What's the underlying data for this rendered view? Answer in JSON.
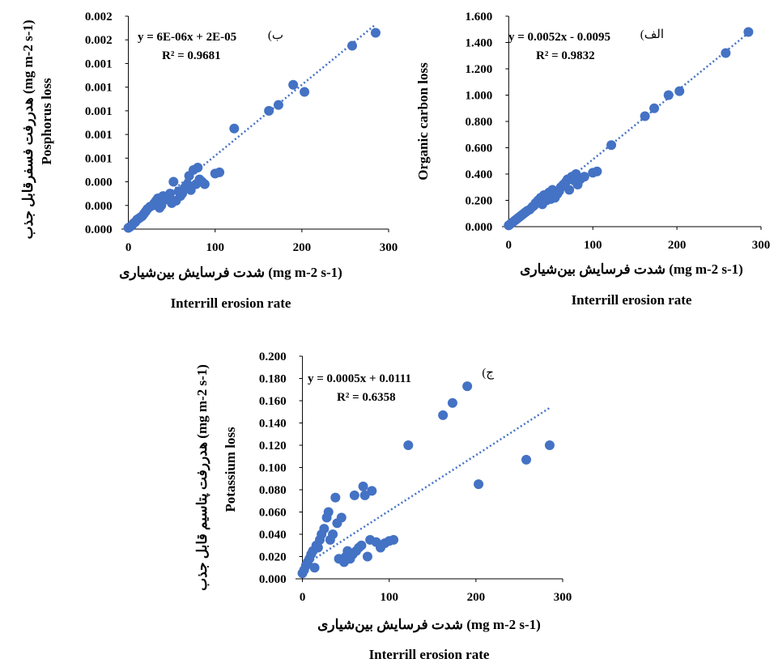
{
  "chart_data": [
    {
      "type": "scatter",
      "panel_label": "ب)",
      "title": "",
      "equation": "y = 6E-06x + 2E-05",
      "r2": "R² = 0.9681",
      "ylabel": "Posphorus loss",
      "ylabel_fa": "هدررفت فسفرقابل جذب",
      "ylabel_unit": "(mg m-2 s-1)",
      "xlabel_fa": "شدت فرسایش بین‌شیاری",
      "xlabel_unit": "(mg m-2 s-1)",
      "xlabel": "Interrill erosion rate",
      "xlim": [
        -8,
        300
      ],
      "ylim": [
        0,
        0.0018
      ],
      "xticks": [
        0,
        100,
        200,
        300
      ],
      "xtick_labels": [
        "0",
        "100",
        "200",
        "300"
      ],
      "yticks": [
        0,
        0.0002,
        0.0004,
        0.0006,
        0.0008,
        0.001,
        0.0012,
        0.0014,
        0.0016,
        0.0018
      ],
      "ytick_labels": [
        "0.000",
        "0.000",
        "0.000",
        "0.001",
        "0.001",
        "0.001",
        "0.001",
        "0.001",
        "0.002",
        "0.002"
      ],
      "trendline": {
        "slope": 6e-06,
        "intercept": 2e-05,
        "x_range": [
          0,
          285
        ]
      },
      "points": [
        [
          0,
          1e-05
        ],
        [
          2,
          2e-05
        ],
        [
          4,
          3e-05
        ],
        [
          6,
          5e-05
        ],
        [
          8,
          6e-05
        ],
        [
          10,
          8e-05
        ],
        [
          12,
          9e-05
        ],
        [
          14,
          0.0001
        ],
        [
          16,
          0.00011
        ],
        [
          18,
          0.00013
        ],
        [
          20,
          0.00015
        ],
        [
          22,
          0.00017
        ],
        [
          25,
          0.00019
        ],
        [
          28,
          0.0002
        ],
        [
          30,
          0.00022
        ],
        [
          32,
          0.00024
        ],
        [
          34,
          0.00026
        ],
        [
          36,
          0.00018
        ],
        [
          38,
          0.0002
        ],
        [
          40,
          0.00028
        ],
        [
          45,
          0.00025
        ],
        [
          48,
          0.0003
        ],
        [
          50,
          0.00022
        ],
        [
          52,
          0.0004
        ],
        [
          55,
          0.00024
        ],
        [
          58,
          0.00032
        ],
        [
          60,
          0.00028
        ],
        [
          62,
          0.0003
        ],
        [
          65,
          0.00035
        ],
        [
          68,
          0.00038
        ],
        [
          70,
          0.00045
        ],
        [
          72,
          0.00033
        ],
        [
          75,
          0.0005
        ],
        [
          78,
          0.00038
        ],
        [
          80,
          0.00052
        ],
        [
          82,
          0.00042
        ],
        [
          85,
          0.0004
        ],
        [
          88,
          0.00038
        ],
        [
          100,
          0.00047
        ],
        [
          105,
          0.00048
        ],
        [
          122,
          0.00085
        ],
        [
          162,
          0.001
        ],
        [
          173,
          0.00105
        ],
        [
          190,
          0.00122
        ],
        [
          203,
          0.00116
        ],
        [
          258,
          0.00155
        ],
        [
          285,
          0.00166
        ]
      ]
    },
    {
      "type": "scatter",
      "panel_label": "الف)",
      "title": "",
      "equation": "y = 0.0052x - 0.0095",
      "r2": "R² = 0.9832",
      "ylabel": "Organic carbon loss",
      "xlabel_fa": "شدت فرسایش بین‌شیاری",
      "xlabel_unit": "(mg m-2 s-1)",
      "xlabel": "Interrill erosion rate",
      "xlim": [
        -8,
        300
      ],
      "ylim": [
        0,
        1.6
      ],
      "xticks": [
        0,
        100,
        200,
        300
      ],
      "xtick_labels": [
        "0",
        "100",
        "200",
        "300"
      ],
      "yticks": [
        0,
        0.2,
        0.4,
        0.6,
        0.8,
        1.0,
        1.2,
        1.4,
        1.6
      ],
      "ytick_labels": [
        "0.000",
        "0.200",
        "0.400",
        "0.600",
        "0.800",
        "1.000",
        "1.200",
        "1.400",
        "1.600"
      ],
      "trendline": {
        "slope": 0.0052,
        "intercept": -0.0095,
        "x_range": [
          0,
          285
        ]
      },
      "points": [
        [
          0,
          0.01
        ],
        [
          2,
          0.02
        ],
        [
          4,
          0.03
        ],
        [
          6,
          0.04
        ],
        [
          8,
          0.05
        ],
        [
          10,
          0.06
        ],
        [
          12,
          0.07
        ],
        [
          14,
          0.08
        ],
        [
          16,
          0.09
        ],
        [
          18,
          0.1
        ],
        [
          20,
          0.11
        ],
        [
          22,
          0.12
        ],
        [
          25,
          0.13
        ],
        [
          28,
          0.15
        ],
        [
          30,
          0.16
        ],
        [
          32,
          0.18
        ],
        [
          35,
          0.2
        ],
        [
          38,
          0.22
        ],
        [
          40,
          0.17
        ],
        [
          42,
          0.24
        ],
        [
          45,
          0.2
        ],
        [
          48,
          0.26
        ],
        [
          50,
          0.21
        ],
        [
          52,
          0.28
        ],
        [
          55,
          0.22
        ],
        [
          58,
          0.25
        ],
        [
          60,
          0.27
        ],
        [
          62,
          0.3
        ],
        [
          65,
          0.32
        ],
        [
          68,
          0.34
        ],
        [
          70,
          0.36
        ],
        [
          72,
          0.28
        ],
        [
          75,
          0.38
        ],
        [
          78,
          0.35
        ],
        [
          80,
          0.4
        ],
        [
          82,
          0.32
        ],
        [
          85,
          0.36
        ],
        [
          90,
          0.38
        ],
        [
          100,
          0.41
        ],
        [
          105,
          0.42
        ],
        [
          122,
          0.62
        ],
        [
          162,
          0.84
        ],
        [
          173,
          0.9
        ],
        [
          190,
          1.0
        ],
        [
          203,
          1.03
        ],
        [
          258,
          1.32
        ],
        [
          285,
          1.48
        ]
      ]
    },
    {
      "type": "scatter",
      "panel_label": "ج)",
      "title": "",
      "equation": "y = 0.0005x + 0.0111",
      "r2": "R² = 0.6358",
      "ylabel": "Potassium loss",
      "ylabel_fa": "هدررفت پتاسیم قابل جذب",
      "ylabel_unit": "(mg m-2 s-1)",
      "xlabel_fa": "شدت فرسایش بین‌شیاری",
      "xlabel_unit": "(mg m-2 s-1)",
      "xlabel": "Interrill erosion rate",
      "xlim": [
        -8,
        300
      ],
      "ylim": [
        0,
        0.2
      ],
      "xticks": [
        0,
        100,
        200,
        300
      ],
      "xtick_labels": [
        "0",
        "100",
        "200",
        "300"
      ],
      "yticks": [
        0,
        0.02,
        0.04,
        0.06,
        0.08,
        0.1,
        0.12,
        0.14,
        0.16,
        0.18,
        0.2
      ],
      "ytick_labels": [
        "0.000",
        "0.020",
        "0.040",
        "0.060",
        "0.080",
        "0.100",
        "0.120",
        "0.140",
        "0.160",
        "0.180",
        "0.200"
      ],
      "trendline": {
        "slope": 0.0005,
        "intercept": 0.0111,
        "x_range": [
          0,
          285
        ]
      },
      "points": [
        [
          0,
          0.005
        ],
        [
          2,
          0.008
        ],
        [
          4,
          0.012
        ],
        [
          6,
          0.015
        ],
        [
          8,
          0.018
        ],
        [
          10,
          0.022
        ],
        [
          12,
          0.025
        ],
        [
          14,
          0.01
        ],
        [
          16,
          0.03
        ],
        [
          18,
          0.028
        ],
        [
          20,
          0.035
        ],
        [
          22,
          0.04
        ],
        [
          25,
          0.045
        ],
        [
          28,
          0.055
        ],
        [
          30,
          0.06
        ],
        [
          32,
          0.035
        ],
        [
          35,
          0.04
        ],
        [
          38,
          0.073
        ],
        [
          40,
          0.05
        ],
        [
          42,
          0.018
        ],
        [
          45,
          0.055
        ],
        [
          48,
          0.015
        ],
        [
          50,
          0.02
        ],
        [
          52,
          0.025
        ],
        [
          55,
          0.018
        ],
        [
          58,
          0.022
        ],
        [
          60,
          0.075
        ],
        [
          62,
          0.025
        ],
        [
          65,
          0.028
        ],
        [
          68,
          0.03
        ],
        [
          70,
          0.083
        ],
        [
          72,
          0.075
        ],
        [
          75,
          0.02
        ],
        [
          78,
          0.035
        ],
        [
          80,
          0.079
        ],
        [
          85,
          0.033
        ],
        [
          90,
          0.028
        ],
        [
          95,
          0.032
        ],
        [
          100,
          0.034
        ],
        [
          105,
          0.035
        ],
        [
          122,
          0.12
        ],
        [
          162,
          0.147
        ],
        [
          173,
          0.158
        ],
        [
          190,
          0.173
        ],
        [
          203,
          0.085
        ],
        [
          258,
          0.107
        ],
        [
          285,
          0.12
        ]
      ]
    }
  ],
  "colors": {
    "marker": "#4472C4",
    "trendline": "#4472C4",
    "axis": "#000000"
  }
}
